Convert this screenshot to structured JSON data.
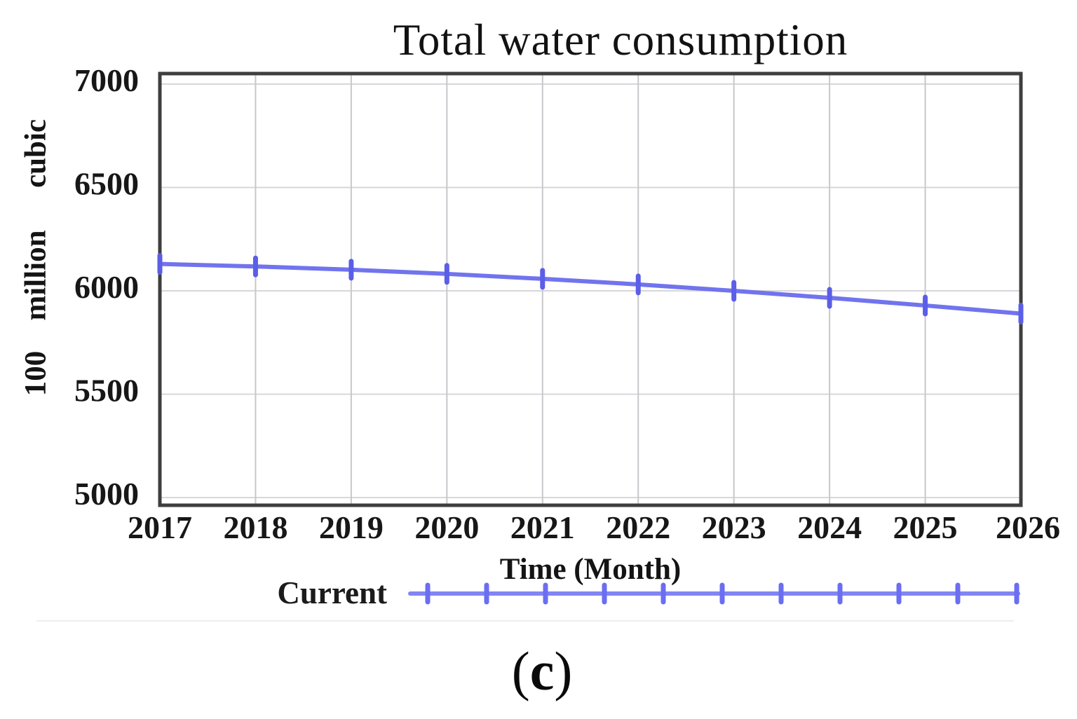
{
  "figure": {
    "caption": {
      "open": "(",
      "letter": "c",
      "close": ")"
    }
  },
  "chart_data": {
    "type": "line",
    "title": "Total water consumption",
    "xlabel": "Time (Month)",
    "ylabel": "100 million cubic",
    "ylabel_words_top_to_bottom": [
      "cubic",
      "million",
      "100"
    ],
    "x": [
      2017,
      2018,
      2019,
      2020,
      2021,
      2022,
      2023,
      2024,
      2025,
      2026
    ],
    "series": [
      {
        "name": "Current",
        "values": [
          6130,
          6118,
          6102,
          6082,
          6058,
          6031,
          6000,
          5966,
          5929,
          5890
        ]
      }
    ],
    "xlim": [
      2017,
      2026
    ],
    "ylim": [
      5000,
      7000
    ],
    "yticks": [
      5000,
      5500,
      6000,
      6500,
      7000
    ],
    "xticks": [
      2017,
      2018,
      2019,
      2020,
      2021,
      2022,
      2023,
      2024,
      2025,
      2026
    ],
    "grid": true,
    "legend_position": "bottom",
    "colors": {
      "line": "#7174ed",
      "line_marker": "#5b5ee6",
      "legend_line": "#8285f3",
      "legend_marker": "#6b6ef0",
      "border": "#3e3e3e",
      "grid_vertical": "#c8c8cc",
      "grid_horizontal": "#d7d7da",
      "text": "#171717",
      "separator": "#eeeef1"
    }
  }
}
